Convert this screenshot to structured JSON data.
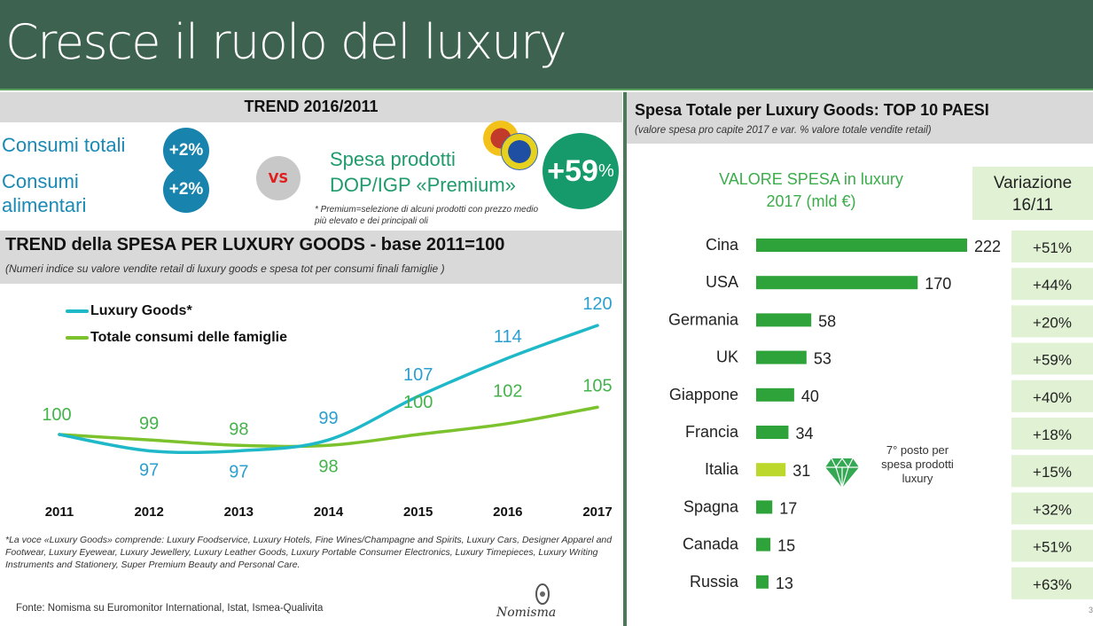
{
  "title": "Cresce il ruolo del luxury",
  "trend": {
    "heading": "TREND 2016/2011",
    "consumi_totali": {
      "label": "Consumi totali",
      "value": "+2%"
    },
    "consumi_alimentari": {
      "label_line1": "Consumi",
      "label_line2": "alimentari",
      "value": "+2%"
    },
    "vs": "VS",
    "premium": {
      "label_line1": "Spesa prodotti",
      "label_line2": "DOP/IGP «Premium»",
      "value": "+59",
      "value_unit": "%",
      "note": "* Premium=selezione di alcuni prodotti con prezzo medio più elevato e dei principali oli"
    }
  },
  "spesa_section": {
    "heading": "TREND della SPESA PER LUXURY GOODS - base 2011=100",
    "subheading": "(Numeri indice su valore vendite retail di luxury goods e spesa tot per consumi finali famiglie )"
  },
  "colors": {
    "luxury": "#1fb8c9",
    "luxury_label": "#2b9fd0",
    "totale": "#7cc22c",
    "totale_label": "#45b34b",
    "bar": "#2ea33a",
    "bar_italia": "#bdd82c",
    "var_bg": "#e1f2d4"
  },
  "chart_data": [
    {
      "type": "line",
      "title": "TREND della SPESA PER LUXURY GOODS - base 2011=100",
      "x": [
        "2011",
        "2012",
        "2013",
        "2014",
        "2015",
        "2016",
        "2017"
      ],
      "series": [
        {
          "name": "Luxury Goods*",
          "values": [
            100,
            97,
            97,
            99,
            107,
            114,
            120
          ]
        },
        {
          "name": "Totale consumi delle famiglie",
          "values": [
            100,
            99,
            98,
            98,
            100,
            102,
            105
          ]
        }
      ],
      "legend": "top-left",
      "grid": false
    },
    {
      "type": "bar",
      "title": "Spesa Totale per Luxury Goods: TOP 10 PAESI",
      "subtitle": "(valore spesa pro capite 2017 e var. % valore totale vendite retail)",
      "value_header": "VALORE SPESA in luxury 2017 (mld €)",
      "variation_header": "Variazione 16/11",
      "categories": [
        "Cina",
        "USA",
        "Germania",
        "UK",
        "Giappone",
        "Francia",
        "Italia",
        "Spagna",
        "Canada",
        "Russia"
      ],
      "values": [
        222,
        170,
        58,
        53,
        40,
        34,
        31,
        17,
        15,
        13
      ],
      "variation": [
        "+51%",
        "+44%",
        "+20%",
        "+59%",
        "+40%",
        "+18%",
        "+15%",
        "+32%",
        "+51%",
        "+63%"
      ],
      "highlight": "Italia",
      "annotation": "7° posto per spesa prodotti luxury"
    }
  ],
  "right": {
    "heading": "Spesa Totale per Luxury Goods: TOP 10 PAESI",
    "subheading": "(valore spesa pro capite 2017 e var. % valore totale vendite retail)",
    "valore_line1": "VALORE SPESA in luxury",
    "valore_line2": "2017 (mld €)",
    "variazione_line1": "Variazione",
    "variazione_line2": "16/11",
    "note_line1": "7° posto per",
    "note_line2": "spesa prodotti",
    "note_line3": "luxury"
  },
  "footnote": "*La voce «Luxury Goods» comprende: Luxury Foodservice, Luxury Hotels, Fine Wines/Champagne and Spirits, Luxury Cars, Designer Apparel and Footwear, Luxury Eyewear, Luxury Jewellery, Luxury Leather Goods, Luxury Portable Consumer Electronics, Luxury Timepieces, Luxury Writing Instruments and Stationery, Super Premium Beauty and Personal Care.",
  "source": "Fonte: Nomisma su Euromonitor International, Istat, Ismea-Qualivita",
  "logo_text": "Nomisma",
  "page_number": "3"
}
